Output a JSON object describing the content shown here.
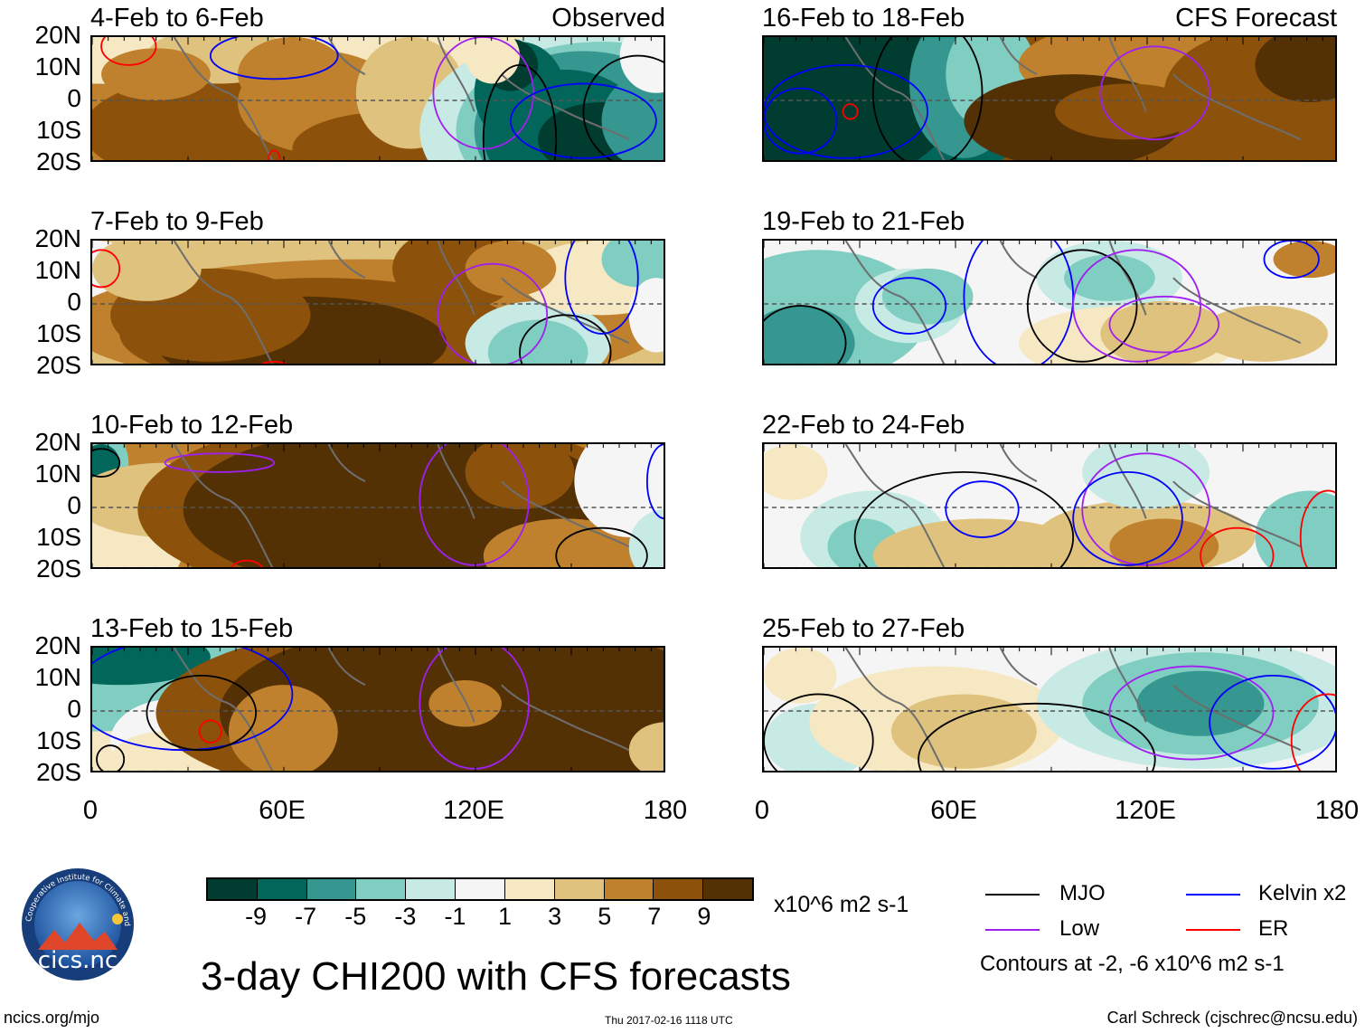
{
  "chart_data": {
    "type": "heatmap",
    "title": "3-day CHI200 with CFS forecasts",
    "variable": "CHI200",
    "units": "x10^6 m2 s-1",
    "x_ticks": [
      "0",
      "60E",
      "120E",
      "180"
    ],
    "y_ticks": [
      "20N",
      "10N",
      "0",
      "10S",
      "20S"
    ],
    "xlim": [
      0,
      180
    ],
    "ylim": [
      -20,
      20
    ],
    "observed_label": "Observed",
    "forecast_label": "CFS Forecast",
    "panels": [
      {
        "period": "4-Feb to 6-Feb",
        "source": "Observed"
      },
      {
        "period": "7-Feb to 9-Feb",
        "source": "Observed"
      },
      {
        "period": "10-Feb to 12-Feb",
        "source": "Observed"
      },
      {
        "period": "13-Feb to 15-Feb",
        "source": "Observed"
      },
      {
        "period": "16-Feb to 18-Feb",
        "source": "CFS Forecast"
      },
      {
        "period": "19-Feb to 21-Feb",
        "source": "CFS Forecast"
      },
      {
        "period": "22-Feb to 24-Feb",
        "source": "CFS Forecast"
      },
      {
        "period": "25-Feb to 27-Feb",
        "source": "CFS Forecast"
      }
    ],
    "colorbar": {
      "labels": [
        "-9",
        "-7",
        "-5",
        "-3",
        "-1",
        "1",
        "3",
        "5",
        "7",
        "9"
      ],
      "colors": [
        "#013c30",
        "#02665b",
        "#35978f",
        "#80cdc1",
        "#c7eae5",
        "#f5f5f5",
        "#f6e8c3",
        "#dfc27d",
        "#bf812d",
        "#8c510a",
        "#543005"
      ]
    },
    "legend": [
      {
        "label": "MJO",
        "color": "#000000"
      },
      {
        "label": "Kelvin x2",
        "color": "#0000ff"
      },
      {
        "label": "Low",
        "color": "#a020f0"
      },
      {
        "label": "ER",
        "color": "#ff0000"
      }
    ],
    "contour_note": "Contours at -2, -6 x10^6 m2 s-1"
  },
  "footer": {
    "logo_text": "cics.nc",
    "logo_ring_text": "Cooperative Institute for Climate and Satellites",
    "left": "ncics.org/mjo",
    "timestamp": "Thu 2017-02-16 1118 UTC",
    "credit": "Carl Schreck (cjschrec@ncsu.edu)"
  }
}
